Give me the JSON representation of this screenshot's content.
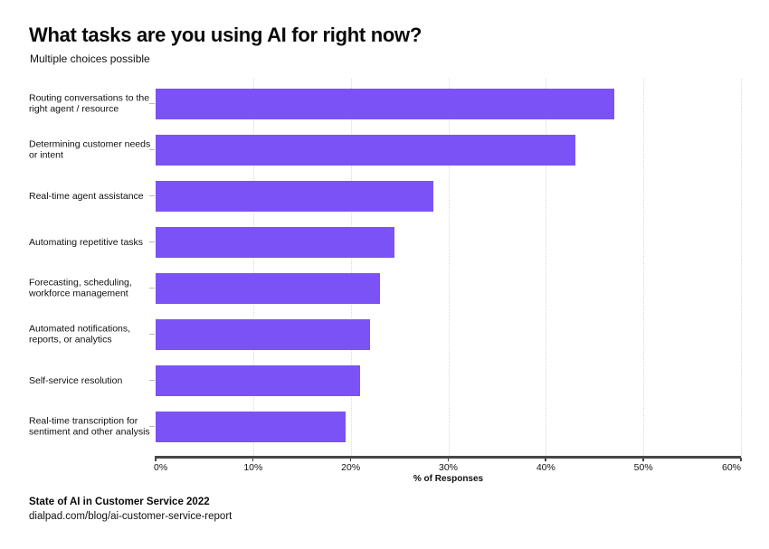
{
  "page": {
    "title": "What tasks are you using AI for right now?",
    "subtitle": "Multiple choices possible",
    "footer": {
      "source": "State of AI in Customer Service 2022",
      "url": "dialpad.com/blog/ai-customer-service-report"
    }
  },
  "chart_data": {
    "type": "bar",
    "orientation": "horizontal",
    "title": "What tasks are you using AI for right now?",
    "subtitle": "Multiple choices possible",
    "categories": [
      "Routing conversations to the\nright agent / resource",
      "Determining customer needs\nor intent",
      "Real-time agent assistance",
      "Automating repetitive tasks",
      "Forecasting, scheduling,\nworkforce management",
      "Automated notifications,\nreports, or analytics",
      "Self-service resolution",
      "Real-time transcription for\nsentiment and other analysis"
    ],
    "values": [
      47,
      43,
      28.5,
      24.5,
      23,
      22,
      21,
      19.5
    ],
    "xlabel": "% of Responses",
    "ylabel": "",
    "xlim": [
      0,
      60
    ],
    "x_ticks": [
      0,
      10,
      20,
      30,
      40,
      50,
      60
    ],
    "x_tick_labels": [
      "0%",
      "10%",
      "20%",
      "30%",
      "40%",
      "50%",
      "60%"
    ],
    "grid": true,
    "legend": false,
    "bar_color": "#7B52F5",
    "axis_color": "#474747",
    "gridline_color": "#d9d9d9"
  }
}
